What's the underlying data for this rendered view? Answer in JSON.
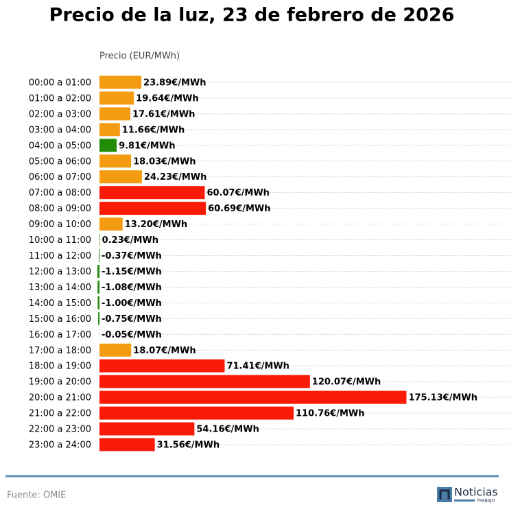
{
  "chart_data": {
    "type": "barh",
    "title": "Precio de la luz, 23 de febrero de 2026",
    "x_label": "Precio (EUR/MWh)",
    "categories": [
      "00:00 a 01:00",
      "01:00 a 02:00",
      "02:00 a 03:00",
      "03:00 a 04:00",
      "04:00 a 05:00",
      "05:00 a 06:00",
      "06:00 a 07:00",
      "07:00 a 08:00",
      "08:00 a 09:00",
      "09:00 a 10:00",
      "10:00 a 11:00",
      "11:00 a 12:00",
      "12:00 a 13:00",
      "13:00 a 14:00",
      "14:00 a 15:00",
      "15:00 a 16:00",
      "16:00 a 17:00",
      "17:00 a 18:00",
      "18:00 a 19:00",
      "19:00 a 20:00",
      "20:00 a 21:00",
      "21:00 a 22:00",
      "22:00 a 23:00",
      "23:00 a 24:00"
    ],
    "values": [
      23.89,
      19.64,
      17.61,
      11.66,
      9.81,
      18.03,
      24.23,
      60.07,
      60.69,
      13.2,
      0.23,
      -0.37,
      -1.15,
      -1.08,
      -1.0,
      -0.75,
      -0.05,
      18.07,
      71.41,
      120.07,
      175.13,
      110.76,
      54.16,
      31.56
    ],
    "value_labels": [
      "23.89€/MWh",
      "19.64€/MWh",
      "17.61€/MWh",
      "11.66€/MWh",
      "9.81€/MWh",
      "18.03€/MWh",
      "24.23€/MWh",
      "60.07€/MWh",
      "60.69€/MWh",
      "13.20€/MWh",
      "0.23€/MWh",
      "-0.37€/MWh",
      "-1.15€/MWh",
      "-1.08€/MWh",
      "-1.00€/MWh",
      "-0.75€/MWh",
      "-0.05€/MWh",
      "18.07€/MWh",
      "71.41€/MWh",
      "120.07€/MWh",
      "175.13€/MWh",
      "110.76€/MWh",
      "54.16€/MWh",
      "31.56€/MWh"
    ],
    "colors": [
      "#f39c12",
      "#f39c12",
      "#f39c12",
      "#f39c12",
      "#228b08",
      "#f39c12",
      "#f39c12",
      "#fb1a05",
      "#fb1a05",
      "#f39c12",
      "#228b08",
      "#228b08",
      "#228b08",
      "#228b08",
      "#228b08",
      "#228b08",
      "#228b08",
      "#f39c12",
      "#fb1a05",
      "#fb1a05",
      "#fb1a05",
      "#fb1a05",
      "#fb1a05",
      "#fb1a05"
    ],
    "xlim": [
      0,
      236
    ],
    "grid": true,
    "source": "Fuente: OMIE"
  },
  "logo": {
    "name": "Noticias",
    "tagline": "TRABAJO"
  }
}
